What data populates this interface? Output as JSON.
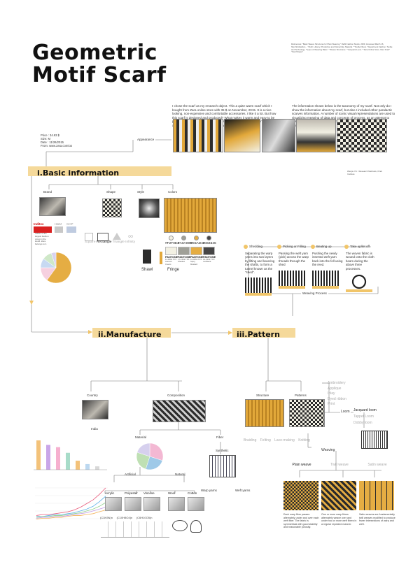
{
  "title": {
    "line1": "Geometric",
    "line2": "Motif Scarf"
  },
  "intro": "I chose the scarf as my research object. This a quite warm scarf which I bought from Zara online store with 35 $ on November, 2015. It is a nice looking, non-expensive and comfortable accessories. I like it a lot. But how this scarf is designed and produced? What makes it warm and easy to be preserve? What is its composition? Is there any relation between scarves and technology? I start my research with those questions.",
  "intro2": "The information shown below is the taxonomy of my scarf. Not only do I show the information about my scarf, but also I included other paralactic scarves information. A number of iconic visual representations are used to visualizing meaning of data and concepts of process, as an attempt to create concept map with graphic design to make a clear form of infographics.",
  "references": "References: \"Basic Weave Structures for Plain Weaving.\" Reflit Fashion Studio. 2009. Accessed March 16, http://kimfashion... \"Cloth. History, Production and Ownership. Material.\" \"Textile Fibers.\" Department Fashion, Textile and Technology. \"Types of Weaving Basic.\" \"Weave Structures.\" \"Jacquard Loom.\" \"Zara Online Store. Men Scarf\" \"Scarf Styles\"",
  "credit": "Wenjie Yin / Research Methods, Pratt Institute",
  "basic_info": {
    "price": "Price : 34.93 $",
    "size": "Size: M",
    "date": "Date : 11/26/2015",
    "from": "From: www.zara.com/us",
    "appearance": "Appearance"
  },
  "sections": {
    "basic": "i.Basic   information",
    "manufacture": "ii.Manufacture",
    "pattern": "iii.Pattern"
  },
  "basic_nodes": {
    "brand": "Brand",
    "shape": "Shape",
    "style": "Style",
    "colors": "Colors"
  },
  "brands": {
    "inditex": "Inditex",
    "hm": "H&M",
    "gap": "GAP"
  },
  "shapes": [
    "Square",
    "Rectangle",
    "Triangle",
    "Infinity"
  ],
  "styles": {
    "shawl": "Shawl",
    "fringe": "Fringe"
  },
  "colors": [
    {
      "hex": "#F2F0E3",
      "code": "#F2F0E3",
      "pantone": "PANTONE",
      "name": "11-0602 TPX Cannoli Cream"
    },
    {
      "hex": "#A0A098",
      "code": "#A0A098",
      "pantone": "PANTONE",
      "name": "17-1502 TPX Shadow"
    },
    {
      "hex": "#E5AD43",
      "code": "#E5AD43",
      "pantone": "PANTONE",
      "name": "15-0953 TPX Spicy Mustard"
    },
    {
      "hex": "#464546",
      "code": "#464546",
      "pantone": "PANTONE",
      "name": "19-0303 TCX Jet Black"
    }
  ],
  "accent": "#f5d99a",
  "weaving_steps": [
    {
      "name": "Shedding",
      "text": "Separating the warp yarns into two layers by lifting and lowering the shafts, to form a tunnel known as the \"shed\"."
    },
    {
      "name": "Picking or Filling",
      "text": "Passing the weft yarn (pick) across the warp threads through the shed"
    },
    {
      "name": "Beating up",
      "text": "Pushing the newly inserted weft yarn back into the fell using the reed."
    },
    {
      "name": "Take up/let off",
      "text": "The woven fabric is wound onto the cloth beam during the above three processes."
    }
  ],
  "weaving_process": "Weaving Process",
  "manufacture_nodes": {
    "country": "Country",
    "composition": "Composition",
    "india": "India",
    "material": "Material",
    "fiber": "Fiber",
    "artificial": "Artificial",
    "natural": "Natural",
    "synthetic": "Synthetic",
    "warp": "Warp yarns",
    "weft": "Weft yarns"
  },
  "materials": [
    "Acrylic",
    "Polyester",
    "Viscose",
    "Wool",
    "Cotton"
  ],
  "formulas": [
    "(C3H3N)n",
    "(C10H8O4)n",
    "(C6H10O5)n"
  ],
  "pattern_nodes": {
    "structure": "Structure",
    "patterns": "Patterns",
    "loom": "Loom",
    "weaving": "Weaving"
  },
  "pattern_list": [
    "Ambroidery",
    "Applique",
    "Inlay",
    "Dyed ribbon",
    "Print"
  ],
  "looms": [
    "Jacquard loom",
    "Tappet Loom",
    "Dobby loom"
  ],
  "structure_methods": [
    "Braiding",
    "Felting",
    "Lace-making",
    "Knitting"
  ],
  "weaves": [
    "Plain weave",
    "Twill weave",
    "Satin weave"
  ],
  "weave_notes": [
    "Each warp fiber passes alternately under and over each weft fiber. The fabric is symmetrical with good stability and reasonable porosity.",
    "One or more warp fibres alternately weave over and under two or more weft fibres in a regular repeated manner.",
    "Satin weaves are fundamentally twill weaves modified to produce fewer intersections of warp and weft."
  ],
  "brand_note": "Inditex is the largest fashion group in the world. Zara belongs to it.",
  "pie_chart": {
    "type": "pie",
    "values": [
      60,
      15,
      10,
      10,
      5
    ],
    "colors": [
      "#e5ad43",
      "#f6d0e0",
      "#c7d9f2",
      "#cfe8c8",
      "#d9d3ef"
    ]
  },
  "comp_pie": {
    "type": "pie",
    "values": [
      30,
      25,
      25,
      20
    ],
    "colors": [
      "#f3b8d3",
      "#9ec9e8",
      "#bfe0b4",
      "#d6d0ee"
    ]
  },
  "bar_chart": {
    "type": "bar",
    "values": [
      26,
      22,
      20,
      15,
      8,
      5,
      3
    ],
    "colors": [
      "#f3c27a",
      "#c9a6e8",
      "#f6b0cf",
      "#a8dcc9",
      "#f3c27a",
      "#bcd8f0",
      "#d8d8d8"
    ]
  },
  "line_chart": {
    "type": "line",
    "series": [
      {
        "color": "#e85a7a",
        "values": [
          5,
          6,
          6,
          7,
          8,
          9,
          11,
          14,
          18,
          22,
          28,
          35
        ]
      },
      {
        "color": "#5ab0e8",
        "values": [
          4,
          4,
          5,
          6,
          6,
          7,
          8,
          10,
          12,
          15,
          20,
          26
        ]
      },
      {
        "color": "#8fd18a",
        "values": [
          3,
          4,
          4,
          5,
          5,
          6,
          7,
          8,
          10,
          12,
          15,
          19
        ]
      },
      {
        "color": "#c29ae6",
        "values": [
          2,
          3,
          3,
          4,
          4,
          5,
          6,
          7,
          8,
          10,
          12,
          14
        ]
      },
      {
        "color": "#f3b35a",
        "values": [
          1,
          2,
          2,
          3,
          3,
          4,
          5,
          5,
          6,
          7,
          9,
          11
        ]
      }
    ]
  }
}
